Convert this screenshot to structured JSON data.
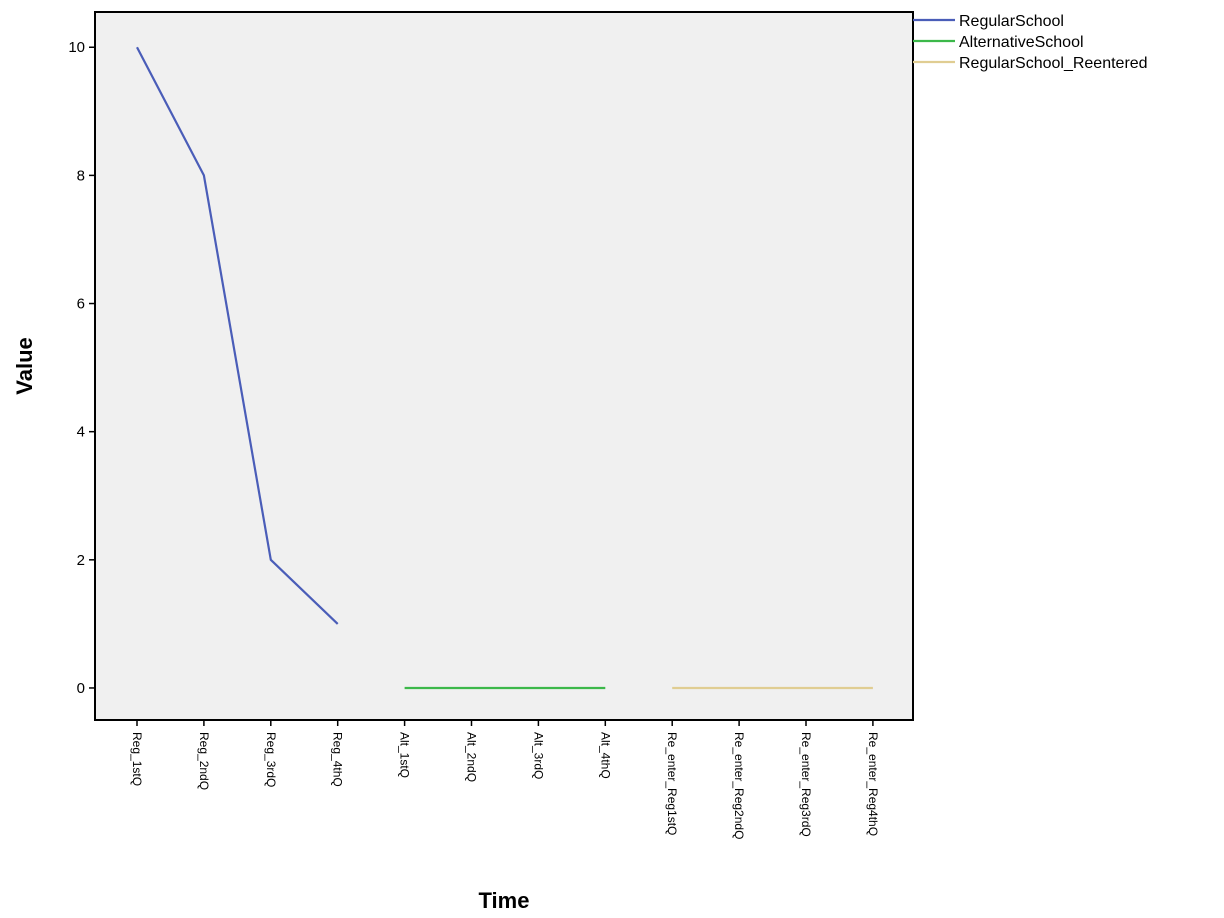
{
  "chart_data": {
    "type": "line",
    "categories": [
      "Reg_1stQ",
      "Reg_2ndQ",
      "Reg_3rdQ",
      "Reg_4thQ",
      "Alt_1stQ",
      "Alt_2ndQ",
      "Alt_3rdQ",
      "Alt_4thQ",
      "Re_enter_Reg1stQ",
      "Re_enter_Reg2ndQ",
      "Re_enter_Reg3rdQ",
      "Re_enter_Reg4thQ"
    ],
    "series": [
      {
        "name": "RegularSchool",
        "color": "#4a5db8",
        "values": [
          10,
          8,
          2,
          1,
          null,
          null,
          null,
          null,
          null,
          null,
          null,
          null
        ]
      },
      {
        "name": "AlternativeSchool",
        "color": "#3cb84a",
        "values": [
          null,
          null,
          null,
          null,
          0,
          0,
          0,
          0,
          null,
          null,
          null,
          null
        ]
      },
      {
        "name": "RegularSchool_Reentered",
        "color": "#e0cd92",
        "values": [
          null,
          null,
          null,
          null,
          null,
          null,
          null,
          null,
          0,
          0,
          0,
          0
        ]
      }
    ],
    "yticks": [
      0,
      2,
      4,
      6,
      8,
      10
    ],
    "ylim": [
      -0.5,
      10.55
    ],
    "xlabel": "Time",
    "ylabel": "Value",
    "legend_position": "top-right",
    "grid": false,
    "plot_background": "#f0f0f0"
  }
}
